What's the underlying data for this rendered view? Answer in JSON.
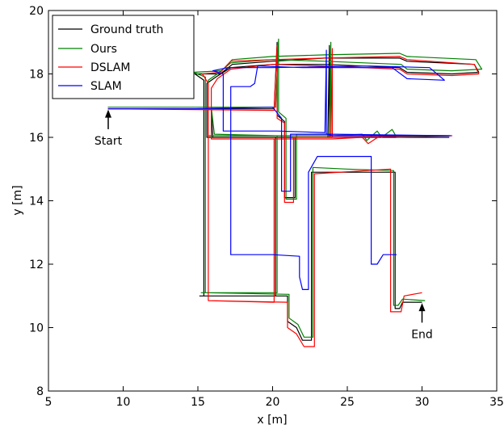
{
  "chart_data": {
    "type": "line",
    "title": "",
    "xlabel": "x [m]",
    "ylabel": "y [m]",
    "xlim": [
      5,
      35
    ],
    "ylim": [
      8,
      20
    ],
    "xticks": [
      5,
      10,
      15,
      20,
      25,
      30,
      35
    ],
    "yticks": [
      8,
      10,
      12,
      14,
      16,
      18,
      20
    ],
    "grid": false,
    "legend_position": "top-left",
    "series": [
      {
        "name": "Ground truth",
        "color": "#000000",
        "points": [
          [
            15.1,
            11.0
          ],
          [
            15.4,
            11.0
          ],
          [
            15.4,
            17.8
          ],
          [
            14.8,
            18.0
          ],
          [
            16.5,
            18.0
          ],
          [
            17.3,
            18.3
          ],
          [
            20.0,
            18.4
          ],
          [
            23.5,
            18.5
          ],
          [
            28.5,
            18.5
          ],
          [
            29.0,
            18.4
          ],
          [
            33.5,
            18.3
          ],
          [
            33.8,
            18.05
          ],
          [
            32.0,
            18.0
          ],
          [
            29.0,
            18.05
          ],
          [
            28.5,
            18.2
          ],
          [
            23.5,
            18.3
          ],
          [
            20.0,
            18.3
          ],
          [
            17.2,
            18.2
          ],
          [
            16.2,
            17.9
          ],
          [
            15.6,
            17.7
          ],
          [
            15.6,
            16.0
          ],
          [
            20.5,
            16.0
          ],
          [
            24.0,
            16.0
          ],
          [
            31.8,
            16.0
          ],
          [
            24.0,
            16.0
          ],
          [
            23.8,
            16.0
          ],
          [
            23.8,
            18.9
          ],
          [
            23.7,
            16.0
          ],
          [
            21.5,
            16.0
          ],
          [
            21.5,
            14.1
          ],
          [
            20.8,
            14.1
          ],
          [
            20.8,
            16.5
          ],
          [
            20.3,
            16.7
          ],
          [
            20.3,
            19.0
          ],
          [
            20.1,
            16.9
          ],
          [
            9.0,
            16.9
          ],
          [
            15.9,
            16.9
          ],
          [
            16.0,
            16.0
          ],
          [
            20.2,
            16.0
          ],
          [
            20.2,
            11.0
          ],
          [
            15.4,
            11.0
          ],
          [
            21.0,
            11.0
          ],
          [
            21.0,
            10.2
          ],
          [
            21.6,
            10.0
          ],
          [
            22.0,
            9.6
          ],
          [
            22.6,
            9.6
          ],
          [
            22.6,
            14.9
          ],
          [
            28.2,
            14.9
          ],
          [
            28.2,
            10.6
          ],
          [
            28.5,
            10.6
          ],
          [
            28.7,
            10.8
          ],
          [
            30.0,
            10.8
          ]
        ]
      },
      {
        "name": "Ours",
        "color": "#008000",
        "points": [
          [
            15.2,
            11.1
          ],
          [
            15.5,
            11.1
          ],
          [
            15.5,
            17.9
          ],
          [
            14.7,
            18.05
          ],
          [
            16.6,
            18.1
          ],
          [
            17.3,
            18.45
          ],
          [
            20.0,
            18.55
          ],
          [
            23.5,
            18.6
          ],
          [
            28.5,
            18.65
          ],
          [
            29.0,
            18.55
          ],
          [
            33.6,
            18.45
          ],
          [
            34.0,
            18.15
          ],
          [
            32.0,
            18.1
          ],
          [
            29.0,
            18.15
          ],
          [
            28.6,
            18.3
          ],
          [
            23.5,
            18.4
          ],
          [
            20.0,
            18.45
          ],
          [
            17.2,
            18.35
          ],
          [
            16.3,
            18.0
          ],
          [
            15.7,
            17.8
          ],
          [
            15.7,
            16.05
          ],
          [
            20.5,
            16.05
          ],
          [
            24.0,
            16.05
          ],
          [
            26.0,
            16.1
          ],
          [
            26.3,
            15.9
          ],
          [
            27.0,
            16.2
          ],
          [
            27.3,
            16.0
          ],
          [
            28.0,
            16.25
          ],
          [
            28.3,
            16.0
          ],
          [
            31.8,
            16.05
          ],
          [
            24.0,
            16.05
          ],
          [
            23.9,
            16.05
          ],
          [
            23.9,
            19.0
          ],
          [
            23.8,
            16.1
          ],
          [
            21.6,
            16.1
          ],
          [
            21.6,
            14.05
          ],
          [
            20.9,
            14.05
          ],
          [
            20.9,
            16.6
          ],
          [
            20.4,
            16.8
          ],
          [
            20.4,
            19.1
          ],
          [
            20.2,
            16.95
          ],
          [
            9.0,
            16.95
          ],
          [
            15.9,
            16.95
          ],
          [
            16.1,
            16.1
          ],
          [
            20.3,
            16.05
          ],
          [
            20.3,
            11.1
          ],
          [
            15.5,
            11.1
          ],
          [
            21.1,
            11.05
          ],
          [
            21.1,
            10.3
          ],
          [
            21.7,
            10.1
          ],
          [
            22.1,
            9.7
          ],
          [
            22.7,
            9.7
          ],
          [
            22.7,
            15.05
          ],
          [
            25.0,
            15.0
          ],
          [
            28.1,
            14.95
          ],
          [
            28.1,
            10.7
          ],
          [
            28.4,
            10.7
          ],
          [
            28.7,
            10.9
          ],
          [
            30.2,
            10.85
          ]
        ]
      },
      {
        "name": "DSLAM",
        "color": "#ff0000",
        "points": [
          [
            15.7,
            10.85
          ],
          [
            15.7,
            17.7
          ],
          [
            15.3,
            18.0
          ],
          [
            16.5,
            18.05
          ],
          [
            17.2,
            18.4
          ],
          [
            20.0,
            18.45
          ],
          [
            23.5,
            18.5
          ],
          [
            28.5,
            18.55
          ],
          [
            29.0,
            18.45
          ],
          [
            33.5,
            18.3
          ],
          [
            33.8,
            18.0
          ],
          [
            32.0,
            17.95
          ],
          [
            29.0,
            18.0
          ],
          [
            28.5,
            18.15
          ],
          [
            23.5,
            18.25
          ],
          [
            20.0,
            18.3
          ],
          [
            17.2,
            18.15
          ],
          [
            16.3,
            17.85
          ],
          [
            15.9,
            17.55
          ],
          [
            15.9,
            15.95
          ],
          [
            20.5,
            15.95
          ],
          [
            24.0,
            15.95
          ],
          [
            26.0,
            16.0
          ],
          [
            26.4,
            15.8
          ],
          [
            27.2,
            16.05
          ],
          [
            32.0,
            16.05
          ],
          [
            24.0,
            16.0
          ],
          [
            24.0,
            18.8
          ],
          [
            23.9,
            16.0
          ],
          [
            21.4,
            16.0
          ],
          [
            21.4,
            13.95
          ],
          [
            20.8,
            13.95
          ],
          [
            20.8,
            16.45
          ],
          [
            20.3,
            16.6
          ],
          [
            20.3,
            18.9
          ],
          [
            20.1,
            16.85
          ],
          [
            9.0,
            16.9
          ],
          [
            15.9,
            16.9
          ],
          [
            15.9,
            15.95
          ],
          [
            20.1,
            15.95
          ],
          [
            20.1,
            10.8
          ],
          [
            15.7,
            10.85
          ],
          [
            21.0,
            10.8
          ],
          [
            21.0,
            10.0
          ],
          [
            21.6,
            9.8
          ],
          [
            22.1,
            9.4
          ],
          [
            22.8,
            9.4
          ],
          [
            22.8,
            14.85
          ],
          [
            27.9,
            15.0
          ],
          [
            27.9,
            10.5
          ],
          [
            28.6,
            10.5
          ],
          [
            28.8,
            11.0
          ],
          [
            30.0,
            11.1
          ]
        ]
      },
      {
        "name": "SLAM",
        "color": "#0000ff",
        "points": [
          [
            9.0,
            16.9
          ],
          [
            14.5,
            16.9
          ],
          [
            20.0,
            16.95
          ],
          [
            20.6,
            16.6
          ],
          [
            20.6,
            14.3
          ],
          [
            21.2,
            14.3
          ],
          [
            21.2,
            16.1
          ],
          [
            24.0,
            16.1
          ],
          [
            31.9,
            16.05
          ],
          [
            24.0,
            16.05
          ],
          [
            23.6,
            16.1
          ],
          [
            23.6,
            18.75
          ],
          [
            23.5,
            16.15
          ],
          [
            20.3,
            16.2
          ],
          [
            16.7,
            16.2
          ],
          [
            16.7,
            18.0
          ],
          [
            16.0,
            18.1
          ],
          [
            17.0,
            18.2
          ],
          [
            18.5,
            18.2
          ],
          [
            20.0,
            18.2
          ],
          [
            26.5,
            18.25
          ],
          [
            30.5,
            18.2
          ],
          [
            31.5,
            17.8
          ],
          [
            29.0,
            17.85
          ],
          [
            28.0,
            18.2
          ],
          [
            22.0,
            18.2
          ],
          [
            19.0,
            18.25
          ],
          [
            18.8,
            17.7
          ],
          [
            18.5,
            17.6
          ],
          [
            17.2,
            17.6
          ],
          [
            17.2,
            12.3
          ],
          [
            20.0,
            12.3
          ],
          [
            21.8,
            12.25
          ],
          [
            21.8,
            11.6
          ],
          [
            22.0,
            11.2
          ],
          [
            22.4,
            11.2
          ],
          [
            22.4,
            14.9
          ],
          [
            23.0,
            15.4
          ],
          [
            26.6,
            15.4
          ],
          [
            26.6,
            12.0
          ],
          [
            27.0,
            12.0
          ],
          [
            27.4,
            12.3
          ],
          [
            28.3,
            12.3
          ]
        ]
      }
    ],
    "annotations": [
      {
        "text": "Start",
        "target": [
          9.0,
          16.9
        ],
        "text_pos": [
          9.0,
          15.9
        ]
      },
      {
        "text": "End",
        "target": [
          30.0,
          10.8
        ],
        "text_pos": [
          30.0,
          9.8
        ]
      }
    ]
  }
}
